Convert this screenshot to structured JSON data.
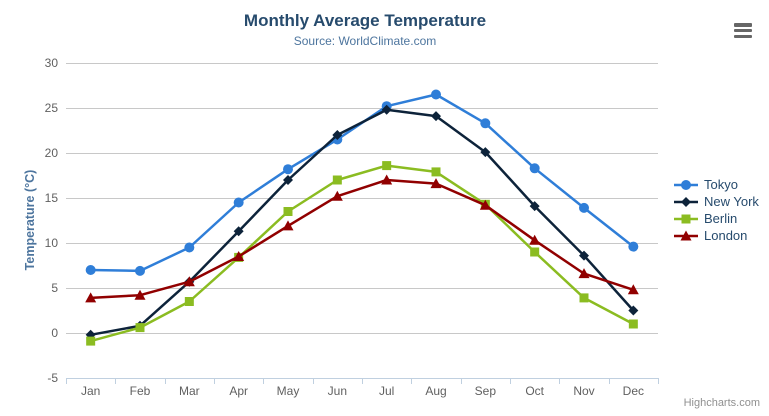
{
  "header": {
    "title": "Monthly Average Temperature",
    "subtitle": "Source: WorldClimate.com"
  },
  "credit_label": "Highcharts.com",
  "export_menu": {
    "icon": "hamburger-icon"
  },
  "palette": {
    "title_color": "#274b6d",
    "subtitle_color": "#4d759e",
    "axis_title_color": "#4d759e",
    "axis_label_color": "#606060",
    "grid_color": "#c8c8c8",
    "axis_line_color": "#c0d0e0",
    "legend_text_color": "#274b6d",
    "credit_color": "#909090"
  },
  "chart_data": {
    "type": "line",
    "title": "Monthly Average Temperature",
    "subtitle": "Source: WorldClimate.com",
    "xlabel": "",
    "ylabel": "Temperature (°C)",
    "categories": [
      "Jan",
      "Feb",
      "Mar",
      "Apr",
      "May",
      "Jun",
      "Jul",
      "Aug",
      "Sep",
      "Oct",
      "Nov",
      "Dec"
    ],
    "ylim": [
      -5,
      30
    ],
    "yticks": [
      -5,
      0,
      5,
      10,
      15,
      20,
      25,
      30
    ],
    "grid": true,
    "legend_position": "right",
    "series": [
      {
        "name": "Tokyo",
        "color": "#2f7ed8",
        "marker": "circle",
        "values": [
          7.0,
          6.9,
          9.5,
          14.5,
          18.2,
          21.5,
          25.2,
          26.5,
          23.3,
          18.3,
          13.9,
          9.6
        ]
      },
      {
        "name": "New York",
        "color": "#0d233a",
        "marker": "diamond",
        "values": [
          -0.2,
          0.8,
          5.7,
          11.3,
          17.0,
          22.0,
          24.8,
          24.1,
          20.1,
          14.1,
          8.6,
          2.5
        ]
      },
      {
        "name": "Berlin",
        "color": "#8bbc21",
        "marker": "square",
        "values": [
          -0.9,
          0.6,
          3.5,
          8.4,
          13.5,
          17.0,
          18.6,
          17.9,
          14.3,
          9.0,
          3.9,
          1.0
        ]
      },
      {
        "name": "London",
        "color": "#910000",
        "marker": "triangle",
        "values": [
          3.9,
          4.2,
          5.7,
          8.5,
          11.9,
          15.2,
          17.0,
          16.6,
          14.2,
          10.3,
          6.6,
          4.8
        ]
      }
    ]
  }
}
